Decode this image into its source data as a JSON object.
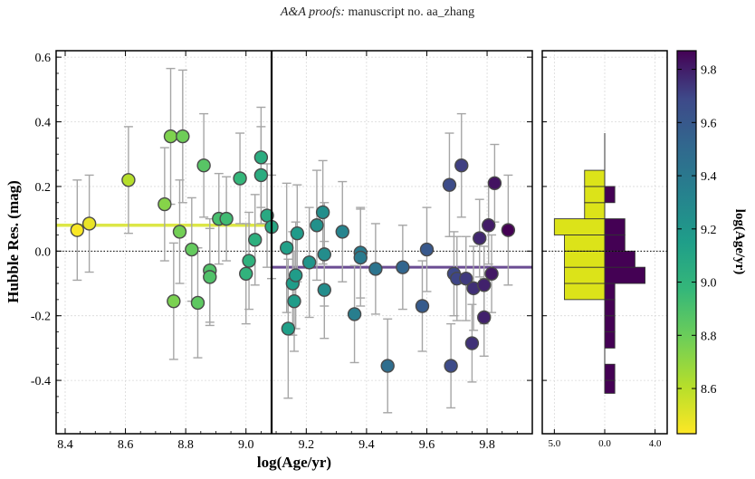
{
  "header": {
    "journal": "A&A proofs:",
    "manuscript": "manuscript no. aa_zhang"
  },
  "chart_data": {
    "type": "scatter",
    "xlabel": "log(Age/yr)",
    "ylabel": "Hubble Res. (mag)",
    "xlim": [
      8.37,
      9.95
    ],
    "ylim": [
      -0.565,
      0.62
    ],
    "xticks": [
      "8.4",
      "8.6",
      "8.8",
      "9.0",
      "9.2",
      "9.4",
      "9.6",
      "9.8"
    ],
    "yticks": [
      "-0.4",
      "-0.2",
      "0.0",
      "0.2",
      "0.4",
      "0.6"
    ],
    "grid": true,
    "split_x": 9.085,
    "mean_young": 0.08,
    "mean_old": -0.05,
    "colorbar": {
      "label": "log(Age/yr)",
      "range": [
        8.43,
        9.87
      ],
      "ticks": [
        "8.6",
        "8.8",
        "9.0",
        "9.2",
        "9.4",
        "9.6",
        "9.8"
      ],
      "colormap": "viridis"
    },
    "histogram": {
      "xticks": [
        "5.0",
        "0.0",
        "4.0"
      ],
      "xlim": [
        6.2,
        -6.2
      ],
      "bins": [
        {
          "y0": -0.44,
          "y1": -0.4,
          "young": 0,
          "old": 1
        },
        {
          "y0": -0.4,
          "y1": -0.35,
          "young": 0,
          "old": 1
        },
        {
          "y0": -0.35,
          "y1": -0.3,
          "young": 0,
          "old": 0
        },
        {
          "y0": -0.3,
          "y1": -0.25,
          "young": 0,
          "old": 1
        },
        {
          "y0": -0.25,
          "y1": -0.2,
          "young": 0,
          "old": 1
        },
        {
          "y0": -0.2,
          "y1": -0.15,
          "young": 0,
          "old": 1
        },
        {
          "y0": -0.15,
          "y1": -0.1,
          "young": 4,
          "old": 1
        },
        {
          "y0": -0.1,
          "y1": -0.05,
          "young": 4,
          "old": 4
        },
        {
          "y0": -0.05,
          "y1": 0.0,
          "young": 4,
          "old": 3
        },
        {
          "y0": 0.0,
          "y1": 0.05,
          "young": 4,
          "old": 2
        },
        {
          "y0": 0.05,
          "y1": 0.1,
          "young": 5,
          "old": 2
        },
        {
          "y0": 0.1,
          "y1": 0.15,
          "young": 2,
          "old": 0
        },
        {
          "y0": 0.15,
          "y1": 0.2,
          "young": 2,
          "old": 1
        },
        {
          "y0": 0.2,
          "y1": 0.25,
          "young": 2,
          "old": 0
        },
        {
          "y0": 0.25,
          "y1": 0.3,
          "young": 0,
          "old": 0
        },
        {
          "y0": 0.3,
          "y1": 0.35,
          "young": 0,
          "old": 0
        }
      ]
    },
    "points": [
      {
        "x": 8.44,
        "y": 0.065,
        "yerr": 0.155
      },
      {
        "x": 8.48,
        "y": 0.085,
        "yerr": 0.15
      },
      {
        "x": 8.61,
        "y": 0.22,
        "yerr": 0.165
      },
      {
        "x": 8.73,
        "y": 0.145,
        "yerr": 0.175
      },
      {
        "x": 8.75,
        "y": 0.355,
        "yerr": 0.21
      },
      {
        "x": 8.76,
        "y": -0.155,
        "yerr": 0.18
      },
      {
        "x": 8.78,
        "y": 0.06,
        "yerr": 0.16
      },
      {
        "x": 8.79,
        "y": 0.355,
        "yerr": 0.205
      },
      {
        "x": 8.82,
        "y": 0.005,
        "yerr": 0.16
      },
      {
        "x": 8.84,
        "y": -0.16,
        "yerr": 0.17
      },
      {
        "x": 8.86,
        "y": 0.265,
        "yerr": 0.16
      },
      {
        "x": 8.88,
        "y": -0.06,
        "yerr": 0.16
      },
      {
        "x": 8.88,
        "y": -0.08,
        "yerr": 0.15
      },
      {
        "x": 8.91,
        "y": 0.1,
        "yerr": 0.14
      },
      {
        "x": 8.935,
        "y": 0.1,
        "yerr": 0.13
      },
      {
        "x": 8.98,
        "y": 0.225,
        "yerr": 0.14
      },
      {
        "x": 9.0,
        "y": -0.07,
        "yerr": 0.155
      },
      {
        "x": 9.01,
        "y": -0.03,
        "yerr": 0.15
      },
      {
        "x": 9.03,
        "y": 0.035,
        "yerr": 0.14
      },
      {
        "x": 9.05,
        "y": 0.29,
        "yerr": 0.155
      },
      {
        "x": 9.05,
        "y": 0.235,
        "yerr": 0.15
      },
      {
        "x": 9.07,
        "y": 0.11,
        "yerr": 0.16
      },
      {
        "x": 9.085,
        "y": 0.075,
        "yerr": 0.16
      },
      {
        "x": 9.135,
        "y": 0.01,
        "yerr": 0.2
      },
      {
        "x": 9.14,
        "y": -0.24,
        "yerr": 0.215
      },
      {
        "x": 9.155,
        "y": -0.1,
        "yerr": 0.16
      },
      {
        "x": 9.16,
        "y": -0.155,
        "yerr": 0.155
      },
      {
        "x": 9.165,
        "y": -0.075,
        "yerr": 0.165
      },
      {
        "x": 9.17,
        "y": 0.055,
        "yerr": 0.15
      },
      {
        "x": 9.21,
        "y": -0.035,
        "yerr": 0.17
      },
      {
        "x": 9.235,
        "y": 0.08,
        "yerr": 0.17
      },
      {
        "x": 9.255,
        "y": 0.12,
        "yerr": 0.16
      },
      {
        "x": 9.26,
        "y": -0.12,
        "yerr": 0.15
      },
      {
        "x": 9.26,
        "y": -0.01,
        "yerr": 0.16
      },
      {
        "x": 9.32,
        "y": 0.06,
        "yerr": 0.155
      },
      {
        "x": 9.36,
        "y": -0.195,
        "yerr": 0.15
      },
      {
        "x": 9.38,
        "y": -0.005,
        "yerr": 0.14
      },
      {
        "x": 9.38,
        "y": -0.02,
        "yerr": 0.15
      },
      {
        "x": 9.43,
        "y": -0.055,
        "yerr": 0.14
      },
      {
        "x": 9.47,
        "y": -0.355,
        "yerr": 0.145
      },
      {
        "x": 9.52,
        "y": -0.05,
        "yerr": 0.13
      },
      {
        "x": 9.585,
        "y": -0.17,
        "yerr": 0.14
      },
      {
        "x": 9.6,
        "y": 0.005,
        "yerr": 0.13
      },
      {
        "x": 9.675,
        "y": 0.205,
        "yerr": 0.16
      },
      {
        "x": 9.68,
        "y": -0.355,
        "yerr": 0.13
      },
      {
        "x": 9.69,
        "y": -0.07,
        "yerr": 0.13
      },
      {
        "x": 9.7,
        "y": -0.085,
        "yerr": 0.13
      },
      {
        "x": 9.715,
        "y": 0.265,
        "yerr": 0.16
      },
      {
        "x": 9.73,
        "y": -0.085,
        "yerr": 0.13
      },
      {
        "x": 9.75,
        "y": -0.285,
        "yerr": 0.12
      },
      {
        "x": 9.755,
        "y": -0.115,
        "yerr": 0.13
      },
      {
        "x": 9.775,
        "y": 0.04,
        "yerr": 0.12
      },
      {
        "x": 9.79,
        "y": -0.105,
        "yerr": 0.12
      },
      {
        "x": 9.79,
        "y": -0.205,
        "yerr": 0.12
      },
      {
        "x": 9.805,
        "y": 0.08,
        "yerr": 0.12
      },
      {
        "x": 9.815,
        "y": -0.07,
        "yerr": 0.12
      },
      {
        "x": 9.825,
        "y": 0.21,
        "yerr": 0.12
      },
      {
        "x": 9.87,
        "y": 0.065,
        "yerr": 0.17
      }
    ]
  }
}
